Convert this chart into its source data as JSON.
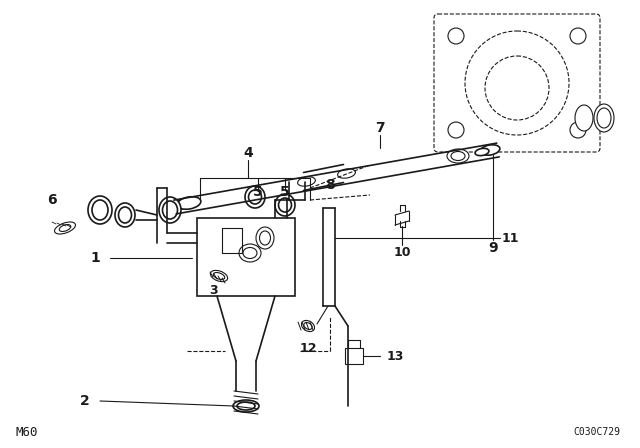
{
  "bg_color": "#ffffff",
  "line_color": "#1a1a1a",
  "text_color": "#1a1a1a",
  "footer_left": "M60",
  "footer_right": "C030C729",
  "lw_main": 1.2,
  "lw_thin": 0.8
}
